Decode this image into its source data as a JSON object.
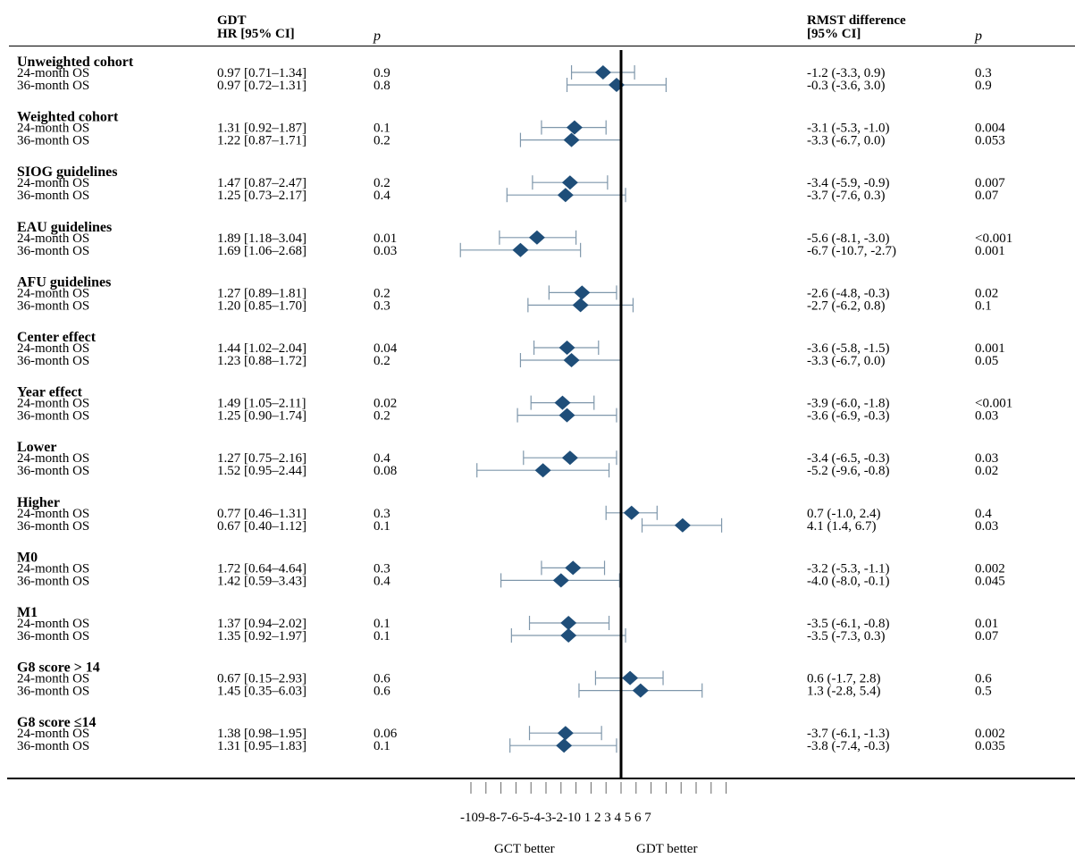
{
  "headers": {
    "gdt": "GDT",
    "hr_ci": "HR [95% CI]",
    "p_left": "p",
    "rmst": "RMST difference",
    "rmst_ci": "[95% CI]",
    "p_right": "p"
  },
  "chart_data": {
    "type": "forest",
    "x_ticks": [
      -10,
      -9,
      -8,
      -7,
      -6,
      -5,
      -4,
      -3,
      -2,
      -1,
      0,
      1,
      2,
      3,
      4,
      5,
      6,
      7
    ],
    "x_tick_label": "-109-8-7-6-5-4-3-2-10 1 2 3 4 5 6 7",
    "x_range": [
      -10,
      7
    ],
    "reference_line": 0,
    "left_label": "GCT  better",
    "right_label": "GDT better",
    "colors": {
      "marker": "#1f4e79",
      "whisker": "#7f97ab",
      "axis": "#000000"
    },
    "groups": [
      {
        "title": "Unweighted cohort",
        "rows": [
          {
            "label": "24-month OS",
            "hr": "0.97 [0.71–1.34]",
            "p_hr": "0.9",
            "rmst": -1.2,
            "lo": -3.3,
            "hi": 0.9,
            "rmst_text": "-1.2 (-3.3, 0.9)",
            "p_rmst": "0.3"
          },
          {
            "label": "36-month OS",
            "hr": "0.97 [0.72–1.31]",
            "p_hr": "0.8",
            "rmst": -0.3,
            "lo": -3.6,
            "hi": 3.0,
            "rmst_text": "-0.3 (-3.6, 3.0)",
            "p_rmst": "0.9"
          }
        ]
      },
      {
        "title": "Weighted cohort",
        "rows": [
          {
            "label": "24-month OS",
            "hr": "1.31 [0.92–1.87]",
            "p_hr": "0.1",
            "rmst": -3.1,
            "lo": -5.3,
            "hi": -1.0,
            "rmst_text": "-3.1 (-5.3, -1.0)",
            "p_rmst": "0.004"
          },
          {
            "label": "36-month OS",
            "hr": "1.22 [0.87–1.71]",
            "p_hr": "0.2",
            "rmst": -3.3,
            "lo": -6.7,
            "hi": 0.0,
            "rmst_text": "-3.3 (-6.7, 0.0)",
            "p_rmst": "0.053"
          }
        ]
      },
      {
        "title": "SIOG guidelines",
        "rows": [
          {
            "label": "24-month OS",
            "hr": "1.47 [0.87–2.47]",
            "p_hr": "0.2",
            "rmst": -3.4,
            "lo": -5.9,
            "hi": -0.9,
            "rmst_text": "-3.4 (-5.9, -0.9)",
            "p_rmst": "0.007"
          },
          {
            "label": "36-month OS",
            "hr": "1.25 [0.73–2.17]",
            "p_hr": "0.4",
            "rmst": -3.7,
            "lo": -7.6,
            "hi": 0.3,
            "rmst_text": "-3.7 (-7.6, 0.3)",
            "p_rmst": "0.07"
          }
        ]
      },
      {
        "title": "EAU guidelines",
        "rows": [
          {
            "label": "24-month OS",
            "hr": "1.89 [1.18–3.04]",
            "p_hr": "0.01",
            "rmst": -5.6,
            "lo": -8.1,
            "hi": -3.0,
            "rmst_text": "-5.6 (-8.1, -3.0)",
            "p_rmst": "<0.001"
          },
          {
            "label": "36-month OS",
            "hr": "1.69 [1.06–2.68]",
            "p_hr": "0.03",
            "rmst": -6.7,
            "lo": -10.7,
            "hi": -2.7,
            "rmst_text": "-6.7 (-10.7, -2.7)",
            "p_rmst": "0.001"
          }
        ]
      },
      {
        "title": "AFU guidelines",
        "rows": [
          {
            "label": "24-month OS",
            "hr": "1.27 [0.89–1.81]",
            "p_hr": "0.2",
            "rmst": -2.6,
            "lo": -4.8,
            "hi": -0.3,
            "rmst_text": "-2.6 (-4.8, -0.3)",
            "p_rmst": "0.02"
          },
          {
            "label": "36-month OS",
            "hr": "1.20 [0.85–1.70]",
            "p_hr": "0.3",
            "rmst": -2.7,
            "lo": -6.2,
            "hi": 0.8,
            "rmst_text": "-2.7 (-6.2, 0.8)",
            "p_rmst": "0.1"
          }
        ]
      },
      {
        "title": "Center effect",
        "rows": [
          {
            "label": "24-month OS",
            "hr": "1.44 [1.02–2.04]",
            "p_hr": "0.04",
            "rmst": -3.6,
            "lo": -5.8,
            "hi": -1.5,
            "rmst_text": "-3.6 (-5.8, -1.5)",
            "p_rmst": "0.001"
          },
          {
            "label": "36-month OS",
            "hr": "1.23 [0.88–1.72]",
            "p_hr": "0.2",
            "rmst": -3.3,
            "lo": -6.7,
            "hi": 0.0,
            "rmst_text": "-3.3 (-6.7, 0.0)",
            "p_rmst": "0.05"
          }
        ]
      },
      {
        "title": "Year effect",
        "rows": [
          {
            "label": "24-month OS",
            "hr": "1.49 [1.05–2.11]",
            "p_hr": "0.02",
            "rmst": -3.9,
            "lo": -6.0,
            "hi": -1.8,
            "rmst_text": "-3.9 (-6.0, -1.8)",
            "p_rmst": "<0.001"
          },
          {
            "label": "36-month OS",
            "hr": "1.25 [0.90–1.74]",
            "p_hr": "0.2",
            "rmst": -3.6,
            "lo": -6.9,
            "hi": -0.3,
            "rmst_text": "-3.6 (-6.9, -0.3)",
            "p_rmst": "0.03"
          }
        ]
      },
      {
        "title": "Lower",
        "rows": [
          {
            "label": "24-month OS",
            "hr": "1.27 [0.75–2.16]",
            "p_hr": "0.4",
            "rmst": -3.4,
            "lo": -6.5,
            "hi": -0.3,
            "rmst_text": "-3.4 (-6.5, -0.3)",
            "p_rmst": "0.03"
          },
          {
            "label": "36-month OS",
            "hr": "1.52 [0.95–2.44]",
            "p_hr": "0.08",
            "rmst": -5.2,
            "lo": -9.6,
            "hi": -0.8,
            "rmst_text": "-5.2 (-9.6, -0.8)",
            "p_rmst": "0.02"
          }
        ]
      },
      {
        "title": "Higher",
        "rows": [
          {
            "label": "24-month OS",
            "hr": "0.77 [0.46–1.31]",
            "p_hr": "0.3",
            "rmst": 0.7,
            "lo": -1.0,
            "hi": 2.4,
            "rmst_text": "0.7 (-1.0, 2.4)",
            "p_rmst": "0.4"
          },
          {
            "label": "36-month OS",
            "hr": "0.67 [0.40–1.12]",
            "p_hr": "0.1",
            "rmst": 4.1,
            "lo": 1.4,
            "hi": 6.7,
            "rmst_text": "4.1 (1.4, 6.7)",
            "p_rmst": "0.03"
          }
        ]
      },
      {
        "title": "M0",
        "rows": [
          {
            "label": "24-month OS",
            "hr": "1.72 [0.64–4.64]",
            "p_hr": "0.3",
            "rmst": -3.2,
            "lo": -5.3,
            "hi": -1.1,
            "rmst_text": "-3.2 (-5.3, -1.1)",
            "p_rmst": "0.002"
          },
          {
            "label": "36-month OS",
            "hr": "1.42 [0.59–3.43]",
            "p_hr": "0.4",
            "rmst": -4.0,
            "lo": -8.0,
            "hi": -0.1,
            "rmst_text": "-4.0 (-8.0, -0.1)",
            "p_rmst": "0.045"
          }
        ]
      },
      {
        "title": "M1",
        "rows": [
          {
            "label": "24-month OS",
            "hr": "1.37 [0.94–2.02]",
            "p_hr": "0.1",
            "rmst": -3.5,
            "lo": -6.1,
            "hi": -0.8,
            "rmst_text": "-3.5 (-6.1, -0.8)",
            "p_rmst": "0.01"
          },
          {
            "label": "36-month OS",
            "hr": "1.35 [0.92–1.97]",
            "p_hr": "0.1",
            "rmst": -3.5,
            "lo": -7.3,
            "hi": 0.3,
            "rmst_text": "-3.5 (-7.3, 0.3)",
            "p_rmst": "0.07"
          }
        ]
      },
      {
        "title": "G8 score > 14",
        "rows": [
          {
            "label": "24-month OS",
            "hr": "0.67 [0.15–2.93]",
            "p_hr": "0.6",
            "rmst": 0.6,
            "lo": -1.7,
            "hi": 2.8,
            "rmst_text": "0.6 (-1.7, 2.8)",
            "p_rmst": "0.6"
          },
          {
            "label": "36-month OS",
            "hr": "1.45 [0.35–6.03]",
            "p_hr": "0.6",
            "rmst": 1.3,
            "lo": -2.8,
            "hi": 5.4,
            "rmst_text": "1.3 (-2.8, 5.4)",
            "p_rmst": "0.5"
          }
        ]
      },
      {
        "title": "G8 score ≤14",
        "rows": [
          {
            "label": "24-month OS",
            "hr": "1.38 [0.98–1.95]",
            "p_hr": "0.06",
            "rmst": -3.7,
            "lo": -6.1,
            "hi": -1.3,
            "rmst_text": "-3.7 (-6.1, -1.3)",
            "p_rmst": "0.002"
          },
          {
            "label": "36-month OS",
            "hr": "1.31 [0.95–1.83]",
            "p_hr": "0.1",
            "rmst": -3.8,
            "lo": -7.4,
            "hi": -0.3,
            "rmst_text": "-3.8 (-7.4, -0.3)",
            "p_rmst": "0.035"
          }
        ]
      }
    ]
  }
}
